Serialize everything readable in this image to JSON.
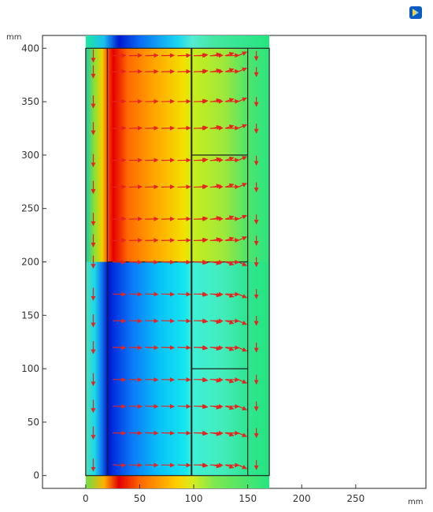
{
  "plot": {
    "y_unit_label": "mm",
    "x_unit_label": "mm",
    "x_ticks": [
      "0",
      "50",
      "100",
      "150",
      "200",
      "250"
    ],
    "y_ticks": [
      "0",
      "50",
      "100",
      "150",
      "200",
      "250",
      "300",
      "350",
      "400"
    ]
  },
  "chart_data": {
    "type": "heatmap",
    "title": "",
    "xlabel": "mm",
    "ylabel": "mm",
    "xlim": [
      -40,
      315
    ],
    "ylim": [
      -12,
      412
    ],
    "domain_outline": {
      "x": [
        0,
        170
      ],
      "y": [
        0,
        400
      ]
    },
    "inner_boundaries": {
      "vertical_lines": [
        {
          "x": 20,
          "y": [
            0,
            400
          ]
        },
        {
          "x": 98,
          "y": [
            0,
            400
          ]
        },
        {
          "x": 150,
          "y": [
            0,
            400
          ]
        }
      ],
      "horizontal_lines": [
        {
          "x": [
            20,
            150
          ],
          "y": 200
        },
        {
          "x": [
            98,
            150
          ],
          "y": 300
        },
        {
          "x": [
            98,
            150
          ],
          "y": 100
        }
      ]
    },
    "arrow_rows_y": [
      10,
      40,
      65,
      90,
      120,
      145,
      170,
      200,
      220,
      240,
      270,
      295,
      325,
      350,
      378,
      393
    ],
    "grid": false,
    "colors": {
      "arrows": "#e8231f",
      "outline": "#222222"
    }
  },
  "toolbar": {
    "logo_icon": "app-logo-icon"
  }
}
